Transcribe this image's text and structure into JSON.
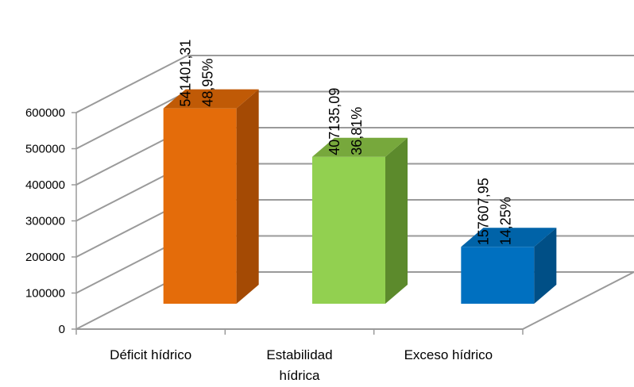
{
  "chart_data": {
    "type": "bar",
    "style": "3d-column",
    "categories": [
      "Déficit hídrico",
      "Estabilidad hídrica",
      "Exceso hídrico"
    ],
    "category_lines": [
      [
        "Déficit hídrico"
      ],
      [
        "Estabilidad",
        "hídrica"
      ],
      [
        "Exceso hídrico"
      ]
    ],
    "values": [
      541401.31,
      407135.09,
      157607.95
    ],
    "value_labels": [
      "541401,31",
      "407135,09",
      "157607,95"
    ],
    "percent_labels": [
      "48,95%",
      "36,81%",
      "14,25%"
    ],
    "ylim": [
      0,
      600000
    ],
    "yticks": [
      0,
      100000,
      200000,
      300000,
      400000,
      500000,
      600000
    ],
    "ytick_labels": [
      "0",
      "100000",
      "200000",
      "300000",
      "400000",
      "500000",
      "600000"
    ],
    "grid": true,
    "legend": "none",
    "colors": [
      {
        "front": "#E46C0A",
        "side": "#A44A04",
        "top": "#C05A06"
      },
      {
        "front": "#92D050",
        "side": "#5C8A2C",
        "top": "#77A83C"
      },
      {
        "front": "#0070C0",
        "side": "#004F86",
        "top": "#0063A8"
      }
    ]
  }
}
